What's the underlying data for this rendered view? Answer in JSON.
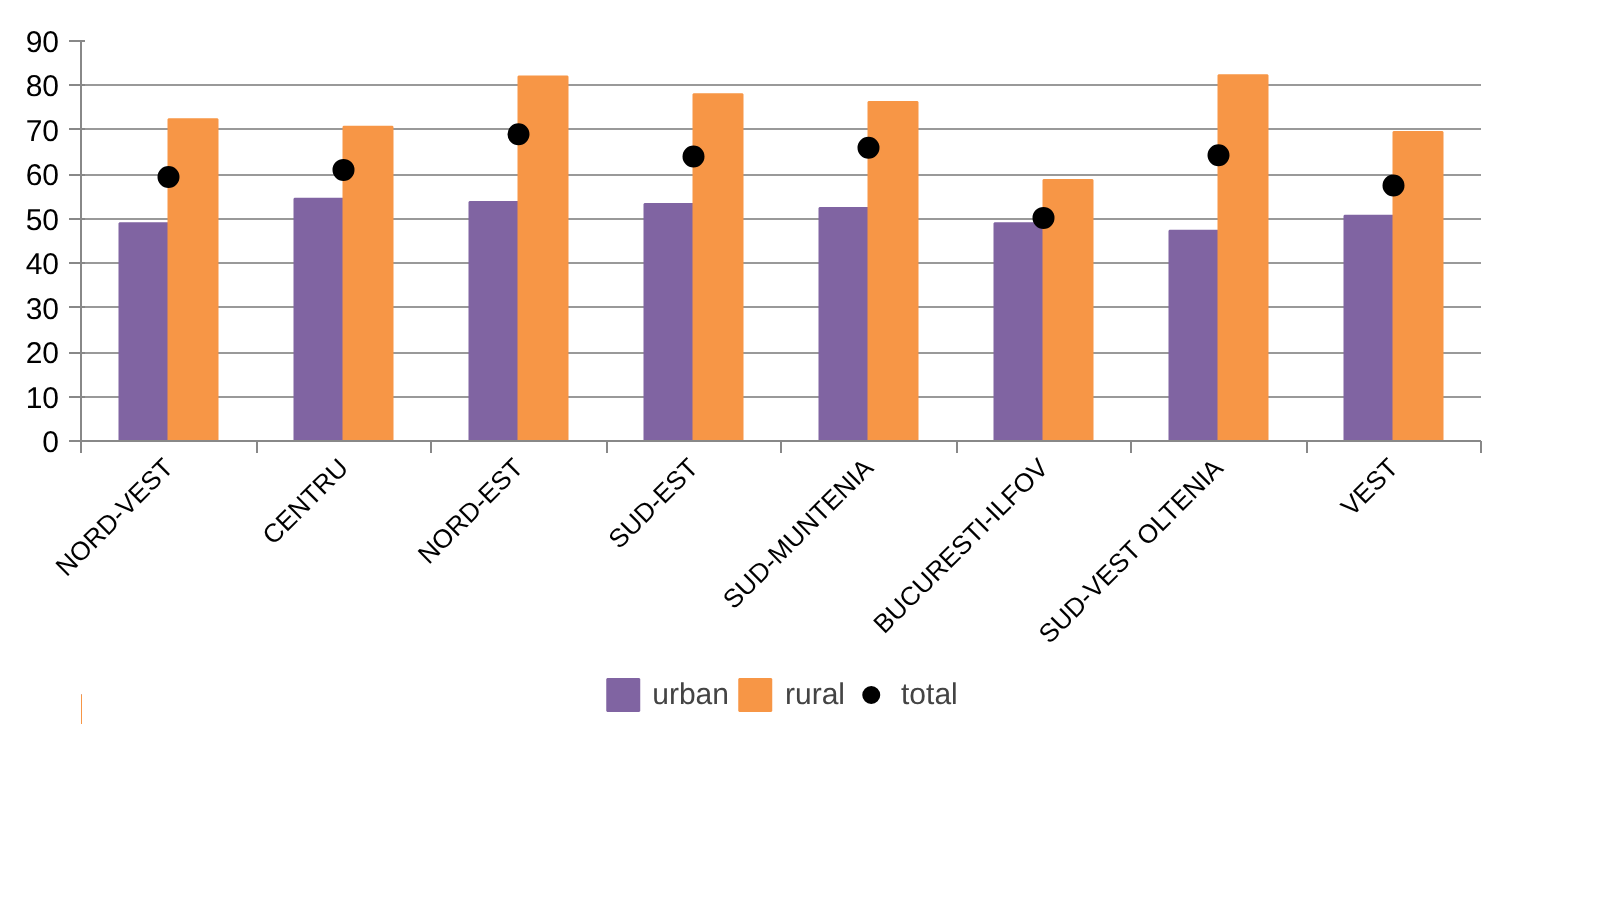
{
  "chart_data": {
    "type": "bar",
    "categories": [
      "NORD-VEST",
      "CENTRU",
      "NORD-EST",
      "SUD-EST",
      "SUD-MUNTENIA",
      "BUCURESTI-ILFOV",
      "SUD-VEST OLTENIA",
      "VEST"
    ],
    "series": [
      {
        "name": "urban",
        "color": "#8064a2",
        "values": [
          49,
          54.5,
          53.8,
          53.3,
          52.4,
          49,
          47.3,
          50.7
        ]
      },
      {
        "name": "rural",
        "color": "#f79646",
        "values": [
          72.4,
          70.7,
          82,
          78,
          76.3,
          58.7,
          82.3,
          69.5
        ]
      },
      {
        "name": "total",
        "type": "scatter",
        "color": "#000000",
        "values": [
          59.4,
          61,
          69,
          64,
          66,
          50.2,
          64.3,
          57.5
        ]
      }
    ],
    "ylim": [
      0,
      90
    ],
    "yticks": [
      0,
      10,
      20,
      30,
      40,
      50,
      60,
      70,
      80,
      90
    ],
    "grid": "y",
    "legend": "bottom",
    "marker": "circle"
  }
}
